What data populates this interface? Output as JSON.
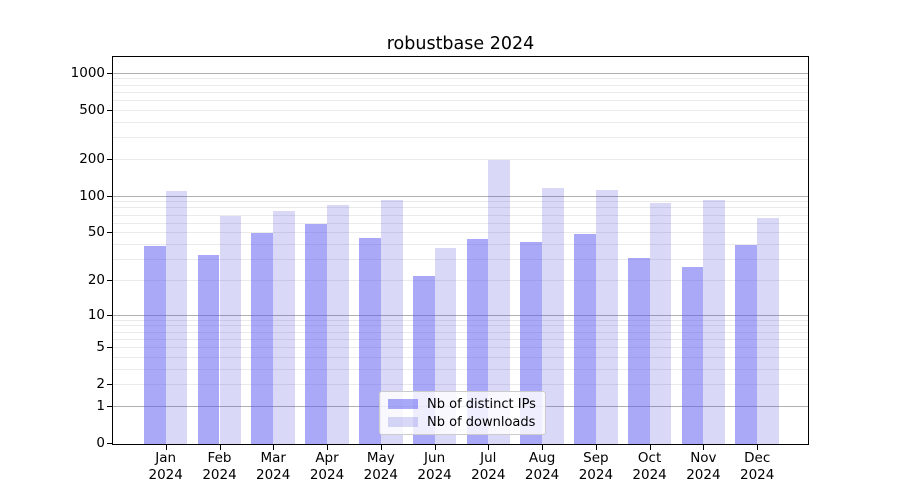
{
  "title": "robustbase 2024",
  "chart_data": {
    "type": "bar",
    "title": "robustbase 2024",
    "categories": [
      "Jan",
      "Feb",
      "Mar",
      "Apr",
      "May",
      "Jun",
      "Jul",
      "Aug",
      "Sep",
      "Oct",
      "Nov",
      "Dec"
    ],
    "year_label": "2024",
    "series": [
      {
        "name": "Nb of distinct IPs",
        "values": [
          39,
          33,
          50,
          60,
          46,
          22,
          45,
          42,
          49,
          31,
          26,
          40
        ],
        "color": "rgba(84,84,239,0.5)"
      },
      {
        "name": "Nb of downloads",
        "values": [
          111,
          70,
          77,
          86,
          94,
          38,
          199,
          117,
          114,
          88,
          94,
          67
        ],
        "color": "rgba(64,64,214,0.2)"
      }
    ],
    "xlabel": "",
    "ylabel": "",
    "yscale": "log1p",
    "ylim": [
      0,
      1340
    ],
    "yticks": [
      1000,
      500,
      200,
      100,
      50,
      20,
      10,
      5,
      2,
      1,
      0
    ],
    "gridlines_major": [
      1,
      10,
      100,
      1000
    ],
    "gridlines_minor": [
      2,
      3,
      4,
      5,
      6,
      7,
      8,
      9,
      20,
      30,
      40,
      50,
      60,
      70,
      80,
      90,
      200,
      300,
      400,
      500,
      600,
      700,
      800,
      900
    ],
    "grid": true,
    "legend_position": "lower center"
  },
  "colors": {
    "background": "#ffffff",
    "bar_distinct_ips": "#a9a9f7",
    "bar_downloads": "#d8d8f7",
    "grid_major": "#b0b0b0",
    "grid_minor": "#eaeaea",
    "axis": "#000000",
    "legend_border": "#cccccc"
  }
}
